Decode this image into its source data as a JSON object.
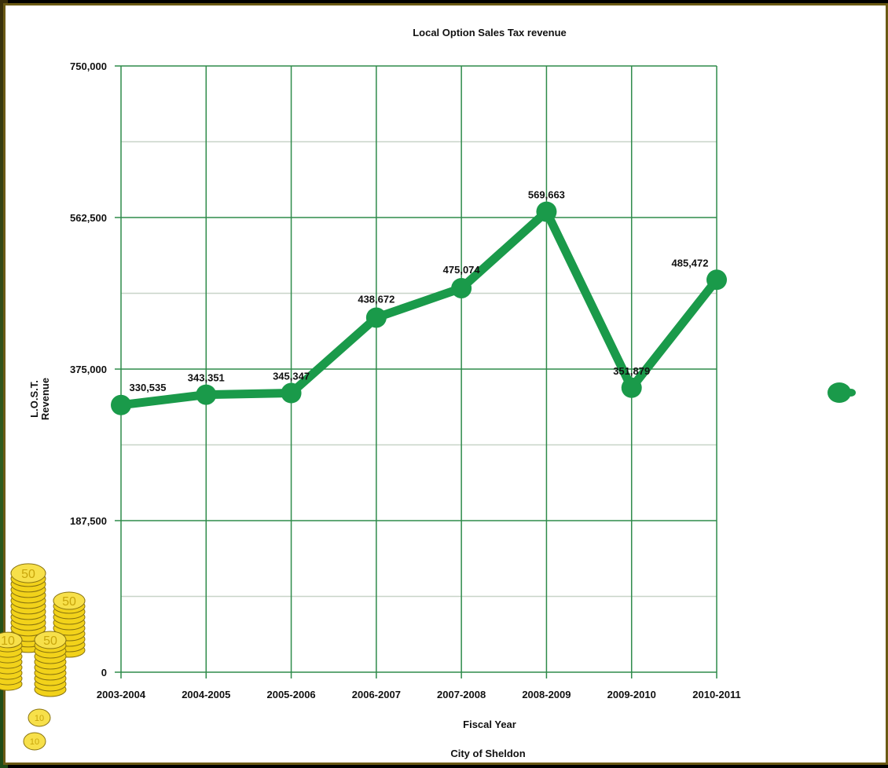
{
  "chart_data": {
    "type": "line",
    "title": "Local Option Sales Tax revenue",
    "xlabel": "Fiscal Year",
    "ylabel": "L.O.S.T.\nRevenue",
    "footer": "City of Sheldon",
    "categories": [
      "2003-2004",
      "2004-2005",
      "2005-2006",
      "2006-2007",
      "2007-2008",
      "2008-2009",
      "2009-2010",
      "2010-2011"
    ],
    "values": [
      330535,
      343351,
      345347,
      438672,
      475074,
      569663,
      351879,
      485472
    ],
    "data_labels": [
      "330,535",
      "343,351",
      "345,347",
      "438,672",
      "475,074",
      "569,663",
      "351,879",
      "485,472"
    ],
    "ylim": [
      0,
      750000
    ],
    "yticks": [
      0,
      187500,
      375000,
      562500,
      750000
    ],
    "ytick_labels": [
      "0",
      "187,500",
      "375,000",
      "562,500",
      "750,000"
    ],
    "grid": true,
    "line_color": "#1a9a4a",
    "grid_color": "#2e8b4a",
    "minor_grid_color": "#c8d4c8"
  },
  "decor": {
    "coin_labels": [
      "50",
      "50",
      "50",
      "10",
      "10",
      "10"
    ]
  }
}
